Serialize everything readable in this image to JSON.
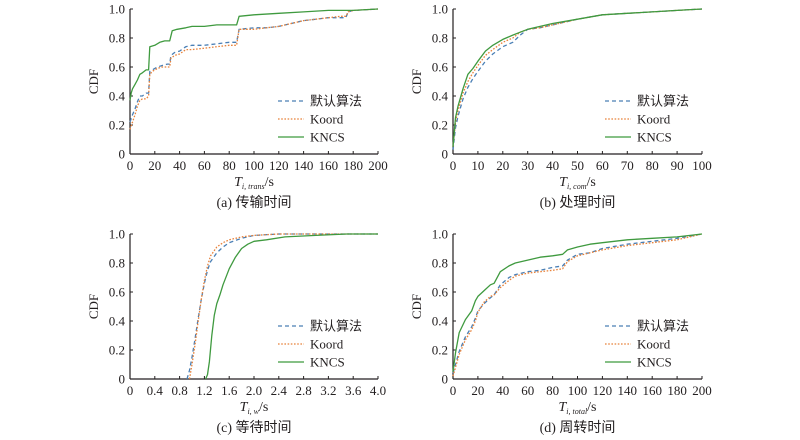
{
  "legend": [
    "默认算法",
    "Koord",
    "KNCS"
  ],
  "colors": {
    "default": "#4a7fb5",
    "koord": "#e8823a",
    "kncs": "#3f9a3f",
    "axis": "#231f20"
  },
  "chart_data": [
    {
      "type": "line",
      "id": "a",
      "caption": "(a) 传输时间",
      "xlabel_main": "T",
      "xlabel_sub": "i, trans",
      "xlabel_unit": "/s",
      "ylabel": "CDF",
      "xlim": [
        0,
        200
      ],
      "ylim": [
        0,
        1
      ],
      "xticks": [
        "0",
        "20",
        "40",
        "60",
        "80",
        "100",
        "120",
        "140",
        "160",
        "180",
        "200"
      ],
      "xtick_values": [
        0,
        20,
        40,
        60,
        80,
        100,
        120,
        140,
        160,
        180,
        200
      ],
      "yticks": [
        "0",
        "0.2",
        "0.4",
        "0.6",
        "0.8",
        "1.0"
      ],
      "ytick_values": [
        0,
        0.2,
        0.4,
        0.6,
        0.8,
        1.0
      ],
      "series": [
        {
          "name": "默认算法",
          "style": "dashed",
          "x": [
            0,
            2,
            4,
            6,
            8,
            10,
            13,
            15,
            16,
            18,
            22,
            26,
            30,
            32,
            33,
            36,
            40,
            45,
            50,
            60,
            70,
            80,
            86,
            88,
            100,
            110,
            120,
            130,
            140,
            150,
            160,
            170,
            174,
            176,
            180,
            200
          ],
          "y": [
            0.22,
            0.27,
            0.31,
            0.36,
            0.4,
            0.4,
            0.42,
            0.42,
            0.57,
            0.58,
            0.6,
            0.61,
            0.62,
            0.62,
            0.68,
            0.7,
            0.71,
            0.74,
            0.75,
            0.75,
            0.76,
            0.77,
            0.77,
            0.86,
            0.87,
            0.87,
            0.88,
            0.9,
            0.92,
            0.93,
            0.94,
            0.94,
            0.94,
            0.98,
            0.99,
            1.0
          ]
        },
        {
          "name": "Koord",
          "style": "dotted",
          "x": [
            0,
            2,
            4,
            6,
            8,
            10,
            13,
            15,
            16,
            18,
            22,
            26,
            30,
            32,
            33,
            36,
            40,
            45,
            50,
            60,
            70,
            80,
            86,
            88,
            100,
            110,
            120,
            130,
            140,
            150,
            160,
            170,
            174,
            176,
            180,
            200
          ],
          "y": [
            0.17,
            0.22,
            0.27,
            0.33,
            0.37,
            0.38,
            0.38,
            0.4,
            0.55,
            0.57,
            0.59,
            0.6,
            0.6,
            0.6,
            0.66,
            0.68,
            0.69,
            0.72,
            0.72,
            0.73,
            0.74,
            0.75,
            0.75,
            0.86,
            0.86,
            0.87,
            0.88,
            0.9,
            0.92,
            0.93,
            0.94,
            0.95,
            0.95,
            0.98,
            0.99,
            1.0
          ]
        },
        {
          "name": "KNCS",
          "style": "solid",
          "x": [
            0,
            1,
            2,
            4,
            6,
            8,
            10,
            13,
            15,
            16,
            20,
            24,
            28,
            32,
            34,
            38,
            45,
            50,
            60,
            70,
            80,
            86,
            88,
            100,
            120,
            140,
            160,
            180,
            200
          ],
          "y": [
            0.37,
            0.42,
            0.45,
            0.48,
            0.51,
            0.55,
            0.56,
            0.58,
            0.58,
            0.74,
            0.75,
            0.77,
            0.78,
            0.78,
            0.85,
            0.86,
            0.87,
            0.88,
            0.88,
            0.89,
            0.89,
            0.89,
            0.95,
            0.96,
            0.97,
            0.98,
            0.99,
            0.99,
            1.0
          ]
        }
      ]
    },
    {
      "type": "line",
      "id": "b",
      "caption": "(b) 处理时间",
      "xlabel_main": "T",
      "xlabel_sub": "i, com",
      "xlabel_unit": "/s",
      "ylabel": "CDF",
      "xlim": [
        0,
        100
      ],
      "ylim": [
        0,
        1
      ],
      "xticks": [
        "0",
        "10",
        "20",
        "30",
        "40",
        "50",
        "60",
        "70",
        "80",
        "90",
        "100"
      ],
      "xtick_values": [
        0,
        10,
        20,
        30,
        40,
        50,
        60,
        70,
        80,
        90,
        100
      ],
      "yticks": [
        "0",
        "0.2",
        "0.4",
        "0.6",
        "0.8",
        "1.0"
      ],
      "ytick_values": [
        0,
        0.2,
        0.4,
        0.6,
        0.8,
        1.0
      ],
      "series": [
        {
          "name": "默认算法",
          "style": "dashed",
          "x": [
            0,
            1,
            2,
            4,
            6,
            8,
            10,
            13,
            16,
            20,
            24,
            27,
            30,
            35,
            40,
            50,
            60,
            70,
            80,
            90,
            100
          ],
          "y": [
            0.03,
            0.18,
            0.26,
            0.38,
            0.46,
            0.52,
            0.57,
            0.64,
            0.69,
            0.74,
            0.77,
            0.82,
            0.86,
            0.87,
            0.89,
            0.93,
            0.96,
            0.97,
            0.98,
            0.99,
            1.0
          ]
        },
        {
          "name": "Koord",
          "style": "dotted",
          "x": [
            0,
            1,
            2,
            4,
            6,
            8,
            10,
            13,
            16,
            20,
            24,
            27,
            30,
            35,
            40,
            50,
            60,
            70,
            80,
            90,
            100
          ],
          "y": [
            0.05,
            0.22,
            0.3,
            0.42,
            0.5,
            0.56,
            0.61,
            0.68,
            0.72,
            0.77,
            0.8,
            0.84,
            0.86,
            0.87,
            0.89,
            0.93,
            0.96,
            0.97,
            0.98,
            0.99,
            1.0
          ]
        },
        {
          "name": "KNCS",
          "style": "solid",
          "x": [
            0,
            1,
            2,
            4,
            6,
            8,
            10,
            13,
            16,
            20,
            24,
            27,
            30,
            35,
            40,
            50,
            60,
            70,
            80,
            90,
            100
          ],
          "y": [
            0.05,
            0.25,
            0.33,
            0.45,
            0.55,
            0.59,
            0.64,
            0.71,
            0.75,
            0.79,
            0.82,
            0.84,
            0.86,
            0.88,
            0.9,
            0.93,
            0.96,
            0.97,
            0.98,
            0.99,
            1.0
          ]
        }
      ]
    },
    {
      "type": "line",
      "id": "c",
      "caption": "(c) 等待时间",
      "xlabel_main": "T",
      "xlabel_sub": "i, w",
      "xlabel_unit": "/s",
      "ylabel": "CDF",
      "xlim": [
        0,
        4.0
      ],
      "ylim": [
        0,
        1
      ],
      "xticks": [
        "0",
        "0.4",
        "0.8",
        "1.2",
        "1.6",
        "2.0",
        "2.4",
        "2.8",
        "3.2",
        "3.6",
        "4.0"
      ],
      "xtick_values": [
        0,
        0.4,
        0.8,
        1.2,
        1.6,
        2.0,
        2.4,
        2.8,
        3.2,
        3.6,
        4.0
      ],
      "yticks": [
        "0",
        "0.2",
        "0.4",
        "0.6",
        "0.8",
        "1.0"
      ],
      "ytick_values": [
        0,
        0.2,
        0.4,
        0.6,
        0.8,
        1.0
      ],
      "series": [
        {
          "name": "默认算法",
          "style": "dashed",
          "x": [
            0.92,
            0.96,
            1.0,
            1.05,
            1.1,
            1.15,
            1.2,
            1.25,
            1.3,
            1.4,
            1.5,
            1.6,
            1.8,
            2.0,
            2.4,
            3.0,
            4.0
          ],
          "y": [
            0,
            0.06,
            0.15,
            0.28,
            0.42,
            0.55,
            0.66,
            0.75,
            0.81,
            0.87,
            0.91,
            0.94,
            0.97,
            0.99,
            1.0,
            1.0,
            1.0
          ]
        },
        {
          "name": "Koord",
          "style": "dotted",
          "x": [
            0.96,
            1.0,
            1.05,
            1.1,
            1.15,
            1.2,
            1.25,
            1.3,
            1.4,
            1.5,
            1.6,
            1.8,
            2.0,
            2.4,
            3.0,
            4.0
          ],
          "y": [
            0,
            0.1,
            0.24,
            0.4,
            0.55,
            0.68,
            0.78,
            0.85,
            0.91,
            0.94,
            0.96,
            0.98,
            0.99,
            1.0,
            1.0,
            1.0
          ]
        },
        {
          "name": "KNCS",
          "style": "solid",
          "x": [
            1.22,
            1.25,
            1.28,
            1.32,
            1.36,
            1.4,
            1.45,
            1.5,
            1.6,
            1.7,
            1.8,
            1.9,
            2.0,
            2.2,
            2.5,
            3.0,
            3.5,
            4.0
          ],
          "y": [
            0,
            0.03,
            0.12,
            0.3,
            0.44,
            0.52,
            0.58,
            0.65,
            0.76,
            0.84,
            0.9,
            0.93,
            0.95,
            0.96,
            0.98,
            0.99,
            1.0,
            1.0
          ]
        }
      ]
    },
    {
      "type": "line",
      "id": "d",
      "caption": "(d) 周转时间",
      "xlabel_main": "T",
      "xlabel_sub": "i, total",
      "xlabel_unit": "/s",
      "ylabel": "CDF",
      "xlim": [
        0,
        200
      ],
      "ylim": [
        0,
        1
      ],
      "xticks": [
        "0",
        "20",
        "40",
        "60",
        "80",
        "100",
        "120",
        "140",
        "160",
        "180",
        "200"
      ],
      "xtick_values": [
        0,
        20,
        40,
        60,
        80,
        100,
        120,
        140,
        160,
        180,
        200
      ],
      "yticks": [
        "0",
        "0.2",
        "0.4",
        "0.6",
        "0.8",
        "1.0"
      ],
      "ytick_values": [
        0,
        0.2,
        0.4,
        0.6,
        0.8,
        1.0
      ],
      "series": [
        {
          "name": "默认算法",
          "style": "dashed",
          "x": [
            0,
            2,
            5,
            10,
            15,
            18,
            20,
            25,
            30,
            33,
            38,
            45,
            50,
            60,
            70,
            80,
            88,
            92,
            100,
            110,
            120,
            140,
            160,
            180,
            200
          ],
          "y": [
            0.04,
            0.1,
            0.19,
            0.29,
            0.36,
            0.42,
            0.47,
            0.52,
            0.56,
            0.58,
            0.65,
            0.7,
            0.72,
            0.74,
            0.75,
            0.77,
            0.78,
            0.82,
            0.86,
            0.87,
            0.9,
            0.93,
            0.95,
            0.97,
            1.0
          ]
        },
        {
          "name": "Koord",
          "style": "dotted",
          "x": [
            0,
            2,
            5,
            10,
            15,
            18,
            20,
            25,
            30,
            33,
            38,
            45,
            50,
            60,
            70,
            80,
            88,
            92,
            100,
            110,
            120,
            140,
            160,
            180,
            200
          ],
          "y": [
            0.02,
            0.08,
            0.17,
            0.27,
            0.34,
            0.4,
            0.46,
            0.53,
            0.57,
            0.58,
            0.63,
            0.68,
            0.71,
            0.73,
            0.74,
            0.75,
            0.76,
            0.81,
            0.85,
            0.87,
            0.89,
            0.92,
            0.94,
            0.96,
            1.0
          ]
        },
        {
          "name": "KNCS",
          "style": "solid",
          "x": [
            0,
            2,
            5,
            10,
            15,
            18,
            20,
            25,
            30,
            33,
            38,
            45,
            50,
            60,
            70,
            80,
            88,
            92,
            100,
            110,
            120,
            140,
            160,
            180,
            200
          ],
          "y": [
            0.05,
            0.18,
            0.32,
            0.41,
            0.47,
            0.54,
            0.57,
            0.61,
            0.65,
            0.66,
            0.74,
            0.78,
            0.8,
            0.82,
            0.84,
            0.85,
            0.86,
            0.89,
            0.91,
            0.93,
            0.94,
            0.96,
            0.97,
            0.98,
            1.0
          ]
        }
      ]
    }
  ]
}
